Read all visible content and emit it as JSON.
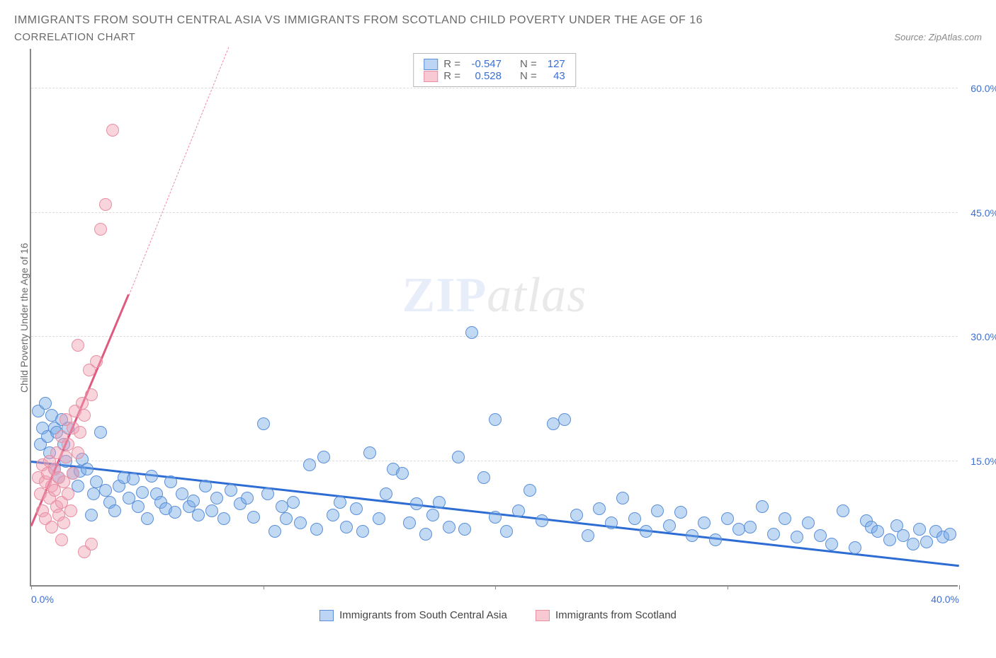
{
  "title": "IMMIGRANTS FROM SOUTH CENTRAL ASIA VS IMMIGRANTS FROM SCOTLAND CHILD POVERTY UNDER THE AGE OF 16",
  "subtitle": "CORRELATION CHART",
  "source_prefix": "Source: ",
  "source": "ZipAtlas.com",
  "y_axis_label": "Child Poverty Under the Age of 16",
  "watermark_a": "ZIP",
  "watermark_b": "atlas",
  "chart": {
    "xlim": [
      0,
      40
    ],
    "ylim": [
      0,
      65
    ],
    "y_ticks": [
      15,
      30,
      45,
      60
    ],
    "y_tick_labels": [
      "15.0%",
      "30.0%",
      "45.0%",
      "60.0%"
    ],
    "x_ticks": [
      0,
      10,
      20,
      30,
      40
    ],
    "x_tick_labels": [
      "0.0%",
      "",
      "",
      "",
      "40.0%"
    ],
    "grid_color": "#dcdcdc",
    "background": "#ffffff",
    "y_tick_color": "#3b6fd6",
    "axis_color": "#888888"
  },
  "legend": {
    "rows": [
      {
        "swatch_fill": "#bcd5f5",
        "swatch_border": "#5a8fd8",
        "r_label": "R =",
        "r_val": "-0.547",
        "n_label": "N =",
        "n_val": "127"
      },
      {
        "swatch_fill": "#f8c9d2",
        "swatch_border": "#e88fa2",
        "r_label": "R =",
        "r_val": "0.528",
        "n_label": "N =",
        "n_val": "43"
      }
    ]
  },
  "bottom_legend": [
    {
      "swatch_fill": "#bcd5f5",
      "swatch_border": "#5a8fd8",
      "label": "Immigrants from South Central Asia"
    },
    {
      "swatch_fill": "#f8c9d2",
      "swatch_border": "#e88fa2",
      "label": "Immigrants from Scotland"
    }
  ],
  "series": [
    {
      "name": "south_central_asia",
      "point_fill": "rgba(120,170,230,0.45)",
      "point_stroke": "#5a8fd8",
      "point_radius": 9,
      "trend": {
        "x1": 0,
        "y1": 14.8,
        "x2": 40,
        "y2": 2.2,
        "color": "#2c6cd3",
        "width": 3,
        "dashed": false
      },
      "points": [
        [
          0.3,
          21
        ],
        [
          0.4,
          17
        ],
        [
          0.5,
          19
        ],
        [
          0.6,
          22
        ],
        [
          0.7,
          18
        ],
        [
          0.8,
          16
        ],
        [
          0.9,
          20.5
        ],
        [
          1.0,
          19
        ],
        [
          1.0,
          14
        ],
        [
          1.1,
          18.5
        ],
        [
          1.2,
          13
        ],
        [
          1.3,
          20
        ],
        [
          1.4,
          17
        ],
        [
          1.5,
          15
        ],
        [
          1.6,
          19
        ],
        [
          1.8,
          13.5
        ],
        [
          2.0,
          12
        ],
        [
          2.1,
          13.8
        ],
        [
          2.2,
          15.2
        ],
        [
          2.4,
          14
        ],
        [
          2.6,
          8.5
        ],
        [
          2.7,
          11
        ],
        [
          2.8,
          12.5
        ],
        [
          3,
          18.5
        ],
        [
          3.2,
          11.5
        ],
        [
          3.4,
          10
        ],
        [
          3.6,
          9
        ],
        [
          3.8,
          12
        ],
        [
          4,
          13
        ],
        [
          4.2,
          10.5
        ],
        [
          4.4,
          12.8
        ],
        [
          4.6,
          9.5
        ],
        [
          4.8,
          11.2
        ],
        [
          5,
          8
        ],
        [
          5.2,
          13.2
        ],
        [
          5.4,
          11
        ],
        [
          5.6,
          10
        ],
        [
          5.8,
          9.2
        ],
        [
          6,
          12.5
        ],
        [
          6.2,
          8.8
        ],
        [
          6.5,
          11
        ],
        [
          6.8,
          9.5
        ],
        [
          7,
          10.2
        ],
        [
          7.2,
          8.5
        ],
        [
          7.5,
          12
        ],
        [
          7.8,
          9
        ],
        [
          8,
          10.5
        ],
        [
          8.3,
          8
        ],
        [
          8.6,
          11.5
        ],
        [
          9,
          9.8
        ],
        [
          9.3,
          10.5
        ],
        [
          9.6,
          8.2
        ],
        [
          10,
          19.5
        ],
        [
          10.2,
          11
        ],
        [
          10.5,
          6.5
        ],
        [
          10.8,
          9.5
        ],
        [
          11,
          8
        ],
        [
          11.3,
          10
        ],
        [
          11.6,
          7.5
        ],
        [
          12,
          14.5
        ],
        [
          12.3,
          6.8
        ],
        [
          12.6,
          15.5
        ],
        [
          13,
          8.5
        ],
        [
          13.3,
          10
        ],
        [
          13.6,
          7
        ],
        [
          14,
          9.2
        ],
        [
          14.3,
          6.5
        ],
        [
          14.6,
          16
        ],
        [
          15,
          8
        ],
        [
          15.3,
          11
        ],
        [
          15.6,
          14
        ],
        [
          16,
          13.5
        ],
        [
          16.3,
          7.5
        ],
        [
          16.6,
          9.8
        ],
        [
          17,
          6.2
        ],
        [
          17.3,
          8.5
        ],
        [
          17.6,
          10
        ],
        [
          18,
          7
        ],
        [
          18.4,
          15.5
        ],
        [
          18.7,
          6.8
        ],
        [
          19,
          30.5
        ],
        [
          19.5,
          13
        ],
        [
          20,
          8.2
        ],
        [
          20,
          20
        ],
        [
          20.5,
          6.5
        ],
        [
          21,
          9
        ],
        [
          21.5,
          11.5
        ],
        [
          22,
          7.8
        ],
        [
          22.5,
          19.5
        ],
        [
          23,
          20
        ],
        [
          23.5,
          8.5
        ],
        [
          24,
          6
        ],
        [
          24.5,
          9.2
        ],
        [
          25,
          7.5
        ],
        [
          25.5,
          10.5
        ],
        [
          26,
          8
        ],
        [
          26.5,
          6.5
        ],
        [
          27,
          9
        ],
        [
          27.5,
          7.2
        ],
        [
          28,
          8.8
        ],
        [
          28.5,
          6
        ],
        [
          29,
          7.5
        ],
        [
          29.5,
          5.5
        ],
        [
          30,
          8
        ],
        [
          30.5,
          6.8
        ],
        [
          31,
          7
        ],
        [
          31.5,
          9.5
        ],
        [
          32,
          6.2
        ],
        [
          32.5,
          8
        ],
        [
          33,
          5.8
        ],
        [
          33.5,
          7.5
        ],
        [
          34,
          6
        ],
        [
          34.5,
          5
        ],
        [
          35,
          9
        ],
        [
          35.5,
          4.5
        ],
        [
          36,
          7.8
        ],
        [
          36.2,
          7
        ],
        [
          36.5,
          6.5
        ],
        [
          37,
          5.5
        ],
        [
          37.3,
          7.2
        ],
        [
          37.6,
          6
        ],
        [
          38,
          5
        ],
        [
          38.3,
          6.8
        ],
        [
          38.6,
          5.2
        ],
        [
          39,
          6.5
        ],
        [
          39.3,
          5.8
        ],
        [
          39.6,
          6.2
        ]
      ]
    },
    {
      "name": "scotland",
      "point_fill": "rgba(240,160,180,0.45)",
      "point_stroke": "#e88fa2",
      "point_radius": 9,
      "trend": {
        "x1": 0,
        "y1": 7,
        "x2": 4.2,
        "y2": 35,
        "color": "#e05a80",
        "width": 3,
        "dashed": false
      },
      "trend_ext": {
        "x1": 4.2,
        "y1": 35,
        "x2": 8.5,
        "y2": 65,
        "color": "#e88fa2",
        "width": 1,
        "dashed": true
      },
      "points": [
        [
          0.3,
          13
        ],
        [
          0.4,
          11
        ],
        [
          0.5,
          14.5
        ],
        [
          0.5,
          9
        ],
        [
          0.6,
          12.5
        ],
        [
          0.6,
          8
        ],
        [
          0.7,
          13.5
        ],
        [
          0.8,
          10.5
        ],
        [
          0.8,
          15
        ],
        [
          0.9,
          12
        ],
        [
          0.9,
          7
        ],
        [
          1.0,
          14
        ],
        [
          1.0,
          11.5
        ],
        [
          1.1,
          9.5
        ],
        [
          1.1,
          16
        ],
        [
          1.2,
          13
        ],
        [
          1.2,
          8.5
        ],
        [
          1.3,
          18
        ],
        [
          1.3,
          10
        ],
        [
          1.4,
          12.5
        ],
        [
          1.4,
          7.5
        ],
        [
          1.5,
          15.5
        ],
        [
          1.5,
          20
        ],
        [
          1.6,
          11
        ],
        [
          1.6,
          17
        ],
        [
          1.7,
          9
        ],
        [
          1.8,
          19
        ],
        [
          1.8,
          13.5
        ],
        [
          1.9,
          21
        ],
        [
          2.0,
          16
        ],
        [
          2.0,
          29
        ],
        [
          2.1,
          18.5
        ],
        [
          2.2,
          22
        ],
        [
          2.3,
          20.5
        ],
        [
          2.3,
          4
        ],
        [
          2.5,
          26
        ],
        [
          2.6,
          23
        ],
        [
          2.6,
          5
        ],
        [
          2.8,
          27
        ],
        [
          3.0,
          43
        ],
        [
          3.2,
          46
        ],
        [
          1.3,
          5.5
        ],
        [
          3.5,
          55
        ]
      ]
    }
  ]
}
